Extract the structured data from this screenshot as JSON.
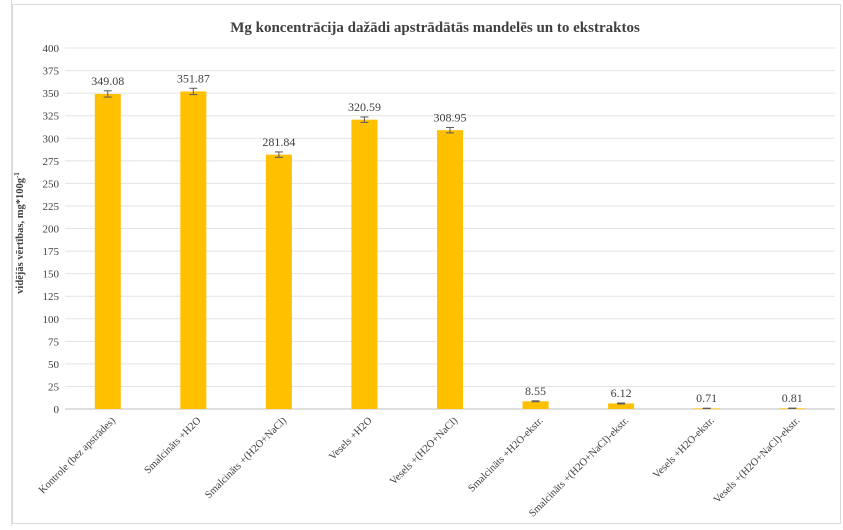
{
  "chart_data": {
    "type": "bar",
    "title": "Mg koncentrācija dažādi apstrādātās mandelēs un to ekstraktos",
    "ylabel": "vidējās vērtības, mg*100g",
    "ylabel_sup": "-1",
    "xlabel": "",
    "ylim": [
      0,
      400
    ],
    "ytick_step": 25,
    "grid": true,
    "error_bars": true,
    "bar_color": "#ffc000",
    "categories": [
      "Kontrole (bez apstrādes)",
      "Smalcināts +H2O",
      "Smalcināts +(H2O+NaCl)",
      "Vesels +H2O",
      "Vesels +(H2O+NaCl)",
      "Smalcināts +H2O-ekstr.",
      "Smalcināts +(H2O+NaCl)-ekstr.",
      "Vesels +H2O-ekstr.",
      "Vesels +(H2O+NaCl)-ekstr."
    ],
    "values": [
      349.08,
      351.87,
      281.84,
      320.59,
      308.95,
      8.55,
      6.12,
      0.71,
      0.81
    ],
    "errors": [
      3.5,
      3.5,
      3.0,
      3.0,
      3.0,
      0.5,
      0.5,
      0.2,
      0.2
    ],
    "value_labels": [
      "349.08",
      "351.87",
      "281.84",
      "320.59",
      "308.95",
      "8.55",
      "6.12",
      "0.71",
      "0.81"
    ]
  }
}
